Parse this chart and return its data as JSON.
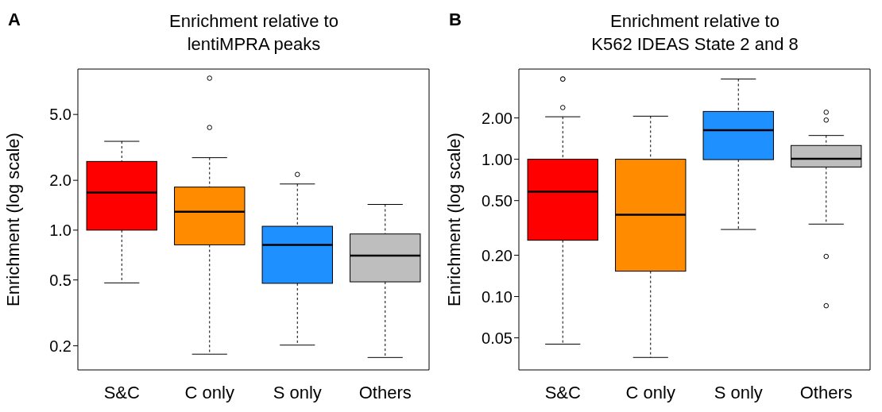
{
  "chart_data": [
    {
      "type": "box",
      "title": "Enrichment relative to\nlentiMPRA peaks",
      "ylabel": "Enrichment (log scale)",
      "annotations": [
        "A"
      ],
      "log": true,
      "categories": [
        "S&C",
        "C only",
        "S only",
        "Others"
      ],
      "colors": [
        "#ff0000",
        "#ff8c00",
        "#1e90ff",
        "#bebebe"
      ],
      "ylim": [
        0.143,
        9.4
      ],
      "yticks": [
        {
          "value": 0.2,
          "label": "0.2"
        },
        {
          "value": 0.5,
          "label": "0.5"
        },
        {
          "value": 1,
          "label": "1.0"
        },
        {
          "value": 2,
          "label": "2.0"
        },
        {
          "value": 5,
          "label": "5.0"
        }
      ],
      "boxes": [
        {
          "low": 0.48,
          "q1": 1.0,
          "median": 1.69,
          "q3": 2.6,
          "high": 3.44
        },
        {
          "low": 0.178,
          "q1": 0.815,
          "median": 1.29,
          "q3": 1.82,
          "high": 2.74,
          "outliers": [
            4.17,
            8.28
          ]
        },
        {
          "low": 0.202,
          "q1": 0.477,
          "median": 0.815,
          "q3": 1.055,
          "high": 1.9,
          "outliers": [
            2.17
          ]
        },
        {
          "low": 0.17,
          "q1": 0.487,
          "median": 0.702,
          "q3": 0.948,
          "high": 1.43
        }
      ]
    },
    {
      "type": "box",
      "title": "Enrichment relative to\nK562 IDEAS State 2 and 8",
      "ylabel": "Enrichment (log scale)",
      "annotations": [
        "B"
      ],
      "log": true,
      "categories": [
        "S&C",
        "C only",
        "S only",
        "Others"
      ],
      "colors": [
        "#ff0000",
        "#ff8c00",
        "#1e90ff",
        "#bebebe"
      ],
      "ylim": [
        0.0292,
        4.54
      ],
      "yticks": [
        {
          "value": 0.05,
          "label": "0.05"
        },
        {
          "value": 0.1,
          "label": "0.10"
        },
        {
          "value": 0.2,
          "label": "0.20"
        },
        {
          "value": 0.5,
          "label": "0.50"
        },
        {
          "value": 1,
          "label": "1.00"
        },
        {
          "value": 2,
          "label": "2.00"
        }
      ],
      "boxes": [
        {
          "low": 0.045,
          "q1": 0.257,
          "median": 0.581,
          "q3": 1.0,
          "high": 2.04,
          "outliers": [
            2.38,
            3.84,
            3.84
          ]
        },
        {
          "low": 0.036,
          "q1": 0.153,
          "median": 0.394,
          "q3": 1.0,
          "high": 2.06
        },
        {
          "low": 0.308,
          "q1": 0.994,
          "median": 1.63,
          "q3": 2.23,
          "high": 3.84
        },
        {
          "low": 0.337,
          "q1": 0.878,
          "median": 1.01,
          "q3": 1.26,
          "high": 1.49,
          "outliers": [
            0.0857,
            0.196,
            1.93,
            2.2
          ]
        }
      ]
    }
  ]
}
